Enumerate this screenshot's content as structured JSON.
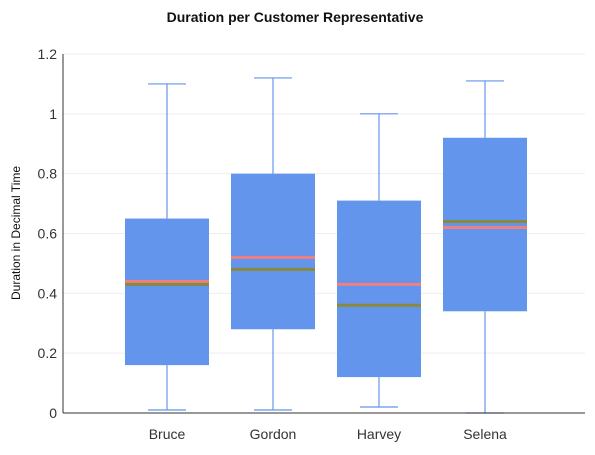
{
  "chart_data": {
    "type": "box",
    "title": "Duration per Customer Representative",
    "xlabel": "",
    "ylabel": "Duration in Decimal Time",
    "ylim": [
      0,
      1.2
    ],
    "yticks": [
      "0",
      "0.2",
      "0.4",
      "0.6",
      "0.8",
      "1",
      "1.2"
    ],
    "grid": true,
    "legend": "none",
    "categories": [
      "Bruce",
      "Gordon",
      "Harvey",
      "Selena"
    ],
    "boxes": [
      {
        "category": "Bruce",
        "min": 0.01,
        "q1": 0.16,
        "median": 0.43,
        "mean": 0.44,
        "q3": 0.65,
        "max": 1.1
      },
      {
        "category": "Gordon",
        "min": 0.01,
        "q1": 0.28,
        "median": 0.48,
        "mean": 0.52,
        "q3": 0.8,
        "max": 1.12
      },
      {
        "category": "Harvey",
        "min": 0.02,
        "q1": 0.12,
        "median": 0.36,
        "mean": 0.43,
        "q3": 0.71,
        "max": 1.0
      },
      {
        "category": "Selena",
        "min": 0.0,
        "q1": 0.34,
        "median": 0.64,
        "mean": 0.62,
        "q3": 0.92,
        "max": 1.11
      }
    ],
    "colors": {
      "box_fill": "#6495ed",
      "whisker": "#6495ed",
      "median_line": "#8a8a3a",
      "mean_line": "#f08080",
      "axis": "#333333",
      "grid": "#eeeeee"
    }
  }
}
